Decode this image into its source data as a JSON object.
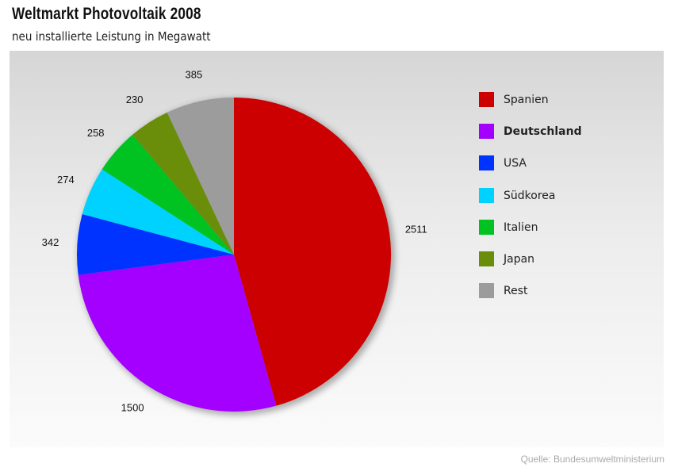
{
  "header": {
    "title": "Weltmarkt Photovoltaik 2008",
    "subtitle": "neu installierte Leistung in Megawatt"
  },
  "source": "Quelle: Bundesumweltministerium",
  "chart_data": {
    "type": "pie",
    "title": "Weltmarkt Photovoltaik 2008",
    "subtitle": "neu installierte Leistung in Megawatt",
    "unit": "Megawatt",
    "legend_position": "right",
    "highlighted": "Deutschland",
    "slices": [
      {
        "label": "Spanien",
        "value": 2511,
        "color": "#cc0000"
      },
      {
        "label": "Deutschland",
        "value": 1500,
        "color": "#a300ff"
      },
      {
        "label": "USA",
        "value": 342,
        "color": "#0033ff"
      },
      {
        "label": "Südkorea",
        "value": 274,
        "color": "#00d2ff"
      },
      {
        "label": "Italien",
        "value": 258,
        "color": "#00c322"
      },
      {
        "label": "Japan",
        "value": 230,
        "color": "#6a8e0a"
      },
      {
        "label": "Rest",
        "value": 385,
        "color": "#9c9c9c"
      }
    ]
  }
}
